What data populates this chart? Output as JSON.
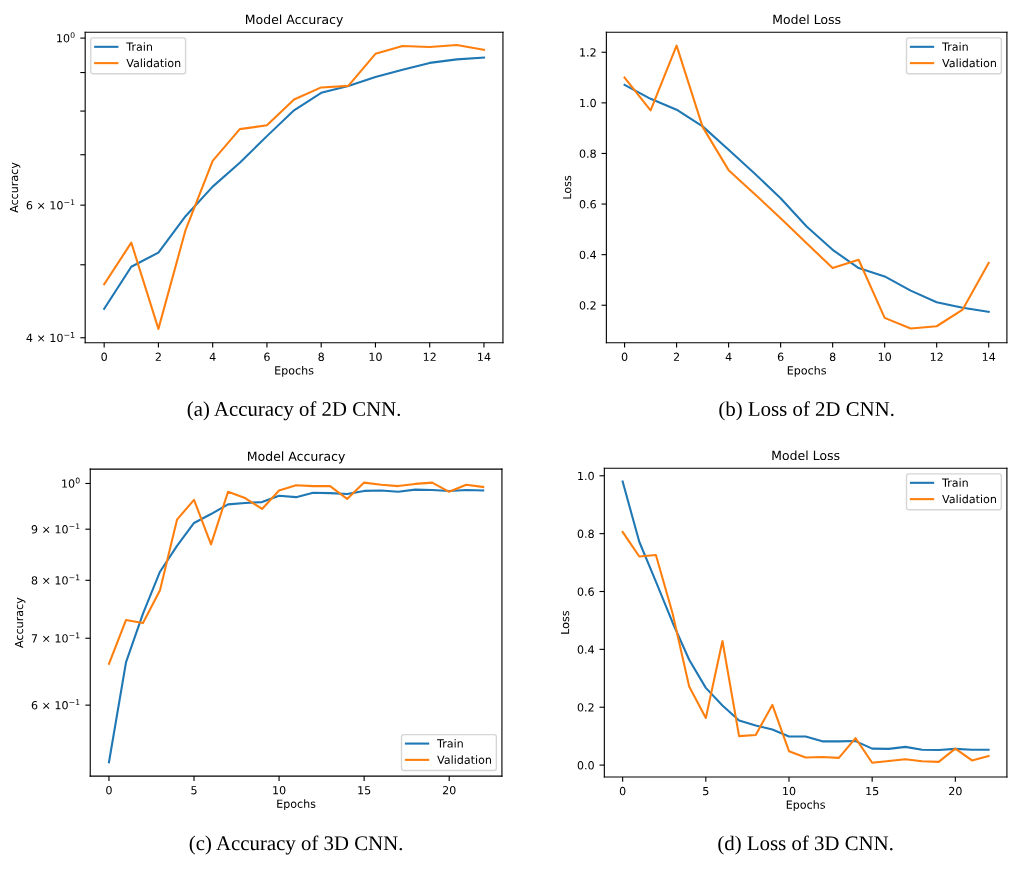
{
  "chart_data": [
    {
      "type": "line",
      "title": "Model Accuracy",
      "xlabel": "Epochs",
      "ylabel": "Accuracy",
      "log": "y",
      "legend": "top left",
      "grid": false,
      "x": [
        0,
        1,
        2,
        3,
        4,
        5,
        6,
        7,
        8,
        9,
        10,
        11,
        12,
        13,
        14
      ],
      "series": [
        {
          "name": "Train",
          "color": "#1f77b4",
          "values": [
            0.437,
            0.497,
            0.519,
            0.58,
            0.635,
            0.683,
            0.741,
            0.802,
            0.846,
            0.864,
            0.888,
            0.908,
            0.927,
            0.937,
            0.942
          ]
        },
        {
          "name": "Validation",
          "color": "#ff7f0e",
          "values": [
            0.471,
            0.535,
            0.411,
            0.556,
            0.687,
            0.757,
            0.766,
            0.829,
            0.86,
            0.864,
            0.953,
            0.976,
            0.973,
            0.979,
            0.965
          ]
        }
      ],
      "xlim": [
        -0.7,
        14.7
      ],
      "xticks": [
        0,
        2,
        4,
        6,
        8,
        10,
        12,
        14
      ],
      "ylim": [
        0.394,
        1.018
      ],
      "yticks": [
        {
          "value": 0.4,
          "label": "4 × 10$^{−1}$"
        },
        {
          "value": 0.5,
          "label": null
        },
        {
          "value": 0.6,
          "label": "6 × 10$^{−1}$"
        },
        {
          "value": 0.7,
          "label": null
        },
        {
          "value": 0.8,
          "label": null
        },
        {
          "value": 0.9,
          "label": null
        },
        {
          "value": 1,
          "label": "10$^{0}$"
        }
      ],
      "annotations": [
        "(a) Accuracy of 2D CNN."
      ]
    },
    {
      "type": "line",
      "title": "Model Loss",
      "xlabel": "Epochs",
      "ylabel": "Loss",
      "legend": "top right",
      "grid": false,
      "x": [
        0,
        1,
        2,
        3,
        4,
        5,
        6,
        7,
        8,
        9,
        10,
        11,
        12,
        13,
        14
      ],
      "series": [
        {
          "name": "Train",
          "color": "#1f77b4",
          "values": [
            1.071,
            1.016,
            0.973,
            0.907,
            0.815,
            0.721,
            0.623,
            0.511,
            0.419,
            0.347,
            0.314,
            0.258,
            0.212,
            0.19,
            0.174
          ]
        },
        {
          "name": "Validation",
          "color": "#ff7f0e",
          "values": [
            1.1,
            0.97,
            1.226,
            0.905,
            0.734,
            0.64,
            0.544,
            0.445,
            0.347,
            0.38,
            0.15,
            0.108,
            0.117,
            0.183,
            0.367
          ]
        }
      ],
      "xlim": [
        -0.7,
        14.7
      ],
      "xticks": [
        0,
        2,
        4,
        6,
        8,
        10,
        12,
        14
      ],
      "ylim": [
        0.052,
        1.279
      ],
      "yticks": [
        0.2,
        0.4,
        0.6,
        0.8,
        {
          "value": 1,
          "label": "1.0"
        },
        1.2
      ],
      "annotations": [
        "(b) Loss of 2D CNN."
      ]
    },
    {
      "type": "line",
      "title": "Model Accuracy",
      "xlabel": "Epochs",
      "ylabel": "Accuracy",
      "log": "y",
      "legend": "bottom right",
      "grid": false,
      "x": [
        0,
        1,
        2,
        3,
        4,
        5,
        6,
        7,
        8,
        9,
        10,
        11,
        12,
        13,
        14,
        15,
        16,
        17,
        18,
        19,
        20,
        21,
        22
      ],
      "series": [
        {
          "name": "Train",
          "color": "#1f77b4",
          "values": [
            0.526,
            0.662,
            0.741,
            0.816,
            0.866,
            0.913,
            0.932,
            0.953,
            0.956,
            0.958,
            0.972,
            0.969,
            0.979,
            0.978,
            0.976,
            0.983,
            0.984,
            0.981,
            0.986,
            0.985,
            0.983,
            0.985,
            0.984
          ]
        },
        {
          "name": "Validation",
          "color": "#ff7f0e",
          "values": [
            0.66,
            0.73,
            0.725,
            0.782,
            0.92,
            0.963,
            0.869,
            0.981,
            0.967,
            0.943,
            0.984,
            0.996,
            0.994,
            0.994,
            0.965,
            1.002,
            0.997,
            0.994,
            0.999,
            1.002,
            0.981,
            0.997,
            0.992
          ]
        }
      ],
      "xlim": [
        -1.1,
        23.1
      ],
      "xticks": [
        0,
        5,
        10,
        15,
        20
      ],
      "ylim": [
        0.5095,
        1.0336
      ],
      "yticks": [
        {
          "value": 0.6,
          "label": "6 × 10$^{−1}$"
        },
        {
          "value": 0.7,
          "label": "7 × 10$^{−1}$"
        },
        {
          "value": 0.8,
          "label": "8 × 10$^{−1}$"
        },
        {
          "value": 0.9,
          "label": "9 × 10$^{−1}$"
        },
        {
          "value": 1,
          "label": "10$^{0}$"
        }
      ],
      "annotations": [
        "(c) Accuracy of 3D CNN."
      ]
    },
    {
      "type": "line",
      "title": "Model Loss",
      "xlabel": "Epochs",
      "ylabel": "Loss",
      "legend": "top right",
      "grid": false,
      "x": [
        0,
        1,
        2,
        3,
        4,
        5,
        6,
        7,
        8,
        9,
        10,
        11,
        12,
        13,
        14,
        15,
        16,
        17,
        18,
        19,
        20,
        21,
        22
      ],
      "series": [
        {
          "name": "Train",
          "color": "#1f77b4",
          "values": [
            0.98,
            0.772,
            0.634,
            0.493,
            0.364,
            0.267,
            0.206,
            0.154,
            0.137,
            0.123,
            0.099,
            0.099,
            0.082,
            0.082,
            0.083,
            0.057,
            0.056,
            0.063,
            0.053,
            0.052,
            0.056,
            0.053,
            0.053
          ]
        },
        {
          "name": "Validation",
          "color": "#ff7f0e",
          "values": [
            0.806,
            0.721,
            0.726,
            0.525,
            0.272,
            0.163,
            0.429,
            0.1,
            0.104,
            0.208,
            0.048,
            0.026,
            0.028,
            0.025,
            0.093,
            0.008,
            0.014,
            0.02,
            0.013,
            0.011,
            0.057,
            0.016,
            0.031
          ]
        }
      ],
      "xlim": [
        -1.1,
        23.1
      ],
      "xticks": [
        0,
        5,
        10,
        15,
        20
      ],
      "ylim": [
        -0.041,
        1.026
      ],
      "yticks": [
        {
          "value": 0,
          "label": "0.0"
        },
        0.2,
        0.4,
        0.6,
        0.8,
        {
          "value": 1,
          "label": "1.0"
        }
      ],
      "annotations": [
        "(d) Loss of 3D CNN."
      ]
    }
  ]
}
